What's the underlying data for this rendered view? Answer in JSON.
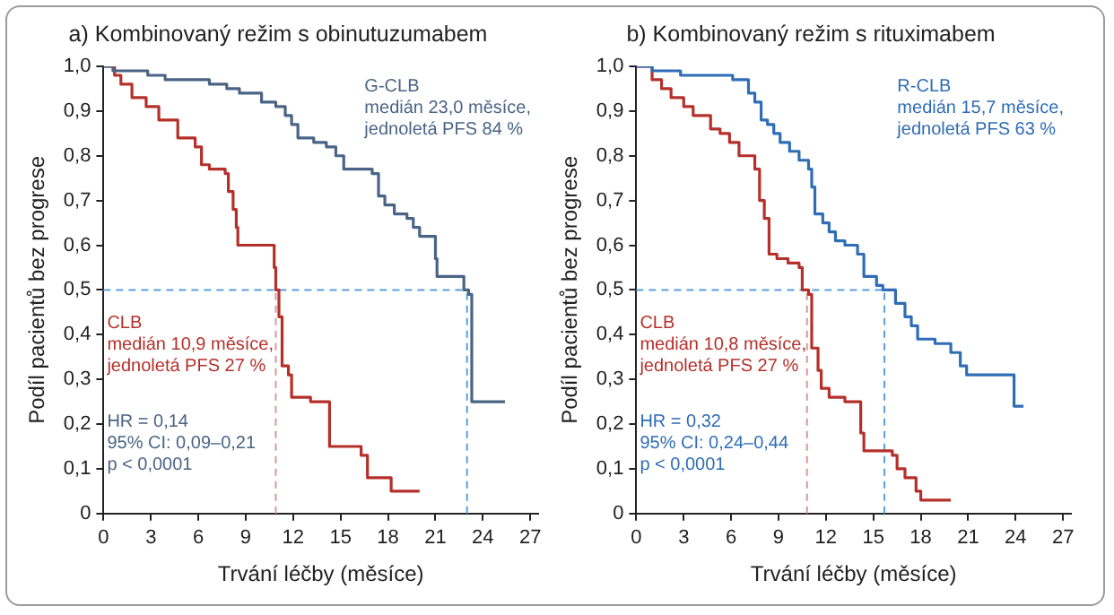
{
  "chart_data": [
    {
      "type": "step",
      "title": "a) Kombinovaný režim s obinutuzumabem",
      "xlabel": "Trvání léčby (měsíce)",
      "ylabel": "Podíl pacientů bez progrese",
      "xlim": [
        0,
        27.5
      ],
      "xticks": [
        0,
        3,
        6,
        9,
        12,
        15,
        18,
        21,
        24,
        27
      ],
      "ylim": [
        0,
        1
      ],
      "yticks": [
        0,
        {
          "value": 0.1,
          "label": "0,1"
        },
        {
          "value": 0.2,
          "label": "0,2"
        },
        {
          "value": 0.3,
          "label": "0,3"
        },
        {
          "value": 0.4,
          "label": "0,4"
        },
        {
          "value": 0.5,
          "label": "0,5"
        },
        {
          "value": 0.6,
          "label": "0,6"
        },
        {
          "value": 0.7,
          "label": "0,7"
        },
        {
          "value": 0.8,
          "label": "0,8"
        },
        {
          "value": 0.9,
          "label": "0,9"
        },
        {
          "value": 1,
          "label": "1,0"
        }
      ],
      "grid": false,
      "legend": false,
      "series": [
        {
          "name": "G-CLB",
          "color": "#4a6485",
          "x": [
            0,
            0.6,
            2.8,
            3.9,
            6.7,
            7.8,
            8.6,
            10.0,
            10.9,
            11.5,
            11.9,
            12.3,
            13.3,
            14.1,
            14.7,
            15.2,
            17.0,
            17.4,
            17.8,
            18.4,
            19.2,
            19.6,
            20.0,
            21.0,
            21.1,
            22.8,
            23.1,
            23.3,
            25.4
          ],
          "values": [
            1,
            0.99,
            0.98,
            0.97,
            0.96,
            0.95,
            0.94,
            0.92,
            0.91,
            0.89,
            0.87,
            0.84,
            0.83,
            0.82,
            0.8,
            0.77,
            0.76,
            0.71,
            0.69,
            0.67,
            0.66,
            0.64,
            0.62,
            0.57,
            0.53,
            0.5,
            0.49,
            0.25,
            0.25
          ]
        },
        {
          "name": "CLB",
          "color": "#b5302a",
          "x": [
            0,
            0.7,
            1.1,
            1.8,
            2.7,
            3.5,
            4.7,
            5.8,
            6.2,
            6.7,
            7.7,
            7.9,
            8.2,
            8.4,
            8.5,
            10.8,
            10.9,
            11.1,
            11.3,
            11.7,
            11.9,
            13.1,
            14.3,
            16.3,
            16.7,
            18.2,
            20.0
          ],
          "values": [
            1,
            0.98,
            0.96,
            0.93,
            0.91,
            0.88,
            0.84,
            0.82,
            0.78,
            0.77,
            0.76,
            0.72,
            0.68,
            0.64,
            0.6,
            0.55,
            0.5,
            0.44,
            0.33,
            0.31,
            0.26,
            0.25,
            0.15,
            0.13,
            0.08,
            0.05,
            0.05
          ]
        }
      ],
      "ref_lines": [
        {
          "axis": "y",
          "value": 0.5,
          "color": "#5aa0dc",
          "line_style": "dashed"
        },
        {
          "axis": "x",
          "value": 10.9,
          "color": "#d49a9a",
          "line_style": "dashed"
        },
        {
          "axis": "x",
          "value": 23.0,
          "color": "#5aa0dc",
          "line_style": "dashed"
        }
      ],
      "annotations": [
        "medián 23,0 měsíce,",
        "jednoletá PFS 84 %",
        "medián 10,9 měsíce,",
        "jednoletá PFS 27 %",
        "HR = 0,14",
        "95% CI: 0,09–0,21",
        "p < 0,0001"
      ]
    },
    {
      "type": "step",
      "title": "b) Kombinovaný režim s rituximabem",
      "xlabel": "Trvání léčby (měsíce)",
      "ylabel": "Podíl pacientů bez progrese",
      "xlim": [
        0,
        27.5
      ],
      "xticks": [
        0,
        3,
        6,
        9,
        12,
        15,
        18,
        21,
        24,
        27
      ],
      "ylim": [
        0,
        1
      ],
      "yticks": [
        0,
        {
          "value": 0.1,
          "label": "0,1"
        },
        {
          "value": 0.2,
          "label": "0,2"
        },
        {
          "value": 0.3,
          "label": "0,3"
        },
        {
          "value": 0.4,
          "label": "0,4"
        },
        {
          "value": 0.5,
          "label": "0,5"
        },
        {
          "value": 0.6,
          "label": "0,6"
        },
        {
          "value": 0.7,
          "label": "0,7"
        },
        {
          "value": 0.8,
          "label": "0,8"
        },
        {
          "value": 0.9,
          "label": "0,9"
        },
        {
          "value": 1,
          "label": "1,0"
        }
      ],
      "grid": false,
      "legend": false,
      "series": [
        {
          "name": "R-CLB",
          "color": "#2f6db5",
          "x": [
            0,
            1.0,
            2.8,
            6.1,
            7.1,
            7.5,
            7.9,
            8.3,
            8.7,
            9.1,
            9.7,
            10.3,
            10.9,
            11.1,
            11.3,
            11.8,
            12.2,
            12.6,
            13.2,
            14.0,
            14.4,
            15.2,
            15.6,
            16.4,
            17.0,
            17.4,
            17.8,
            18.9,
            19.9,
            20.5,
            20.9,
            23.9,
            24.5
          ],
          "values": [
            1,
            0.99,
            0.98,
            0.97,
            0.94,
            0.92,
            0.88,
            0.87,
            0.85,
            0.83,
            0.81,
            0.79,
            0.77,
            0.73,
            0.67,
            0.65,
            0.63,
            0.61,
            0.6,
            0.58,
            0.53,
            0.51,
            0.5,
            0.47,
            0.44,
            0.42,
            0.39,
            0.38,
            0.36,
            0.33,
            0.31,
            0.24,
            0.24
          ]
        },
        {
          "name": "CLB",
          "color": "#b5302a",
          "x": [
            0,
            1.0,
            1.6,
            2.2,
            3.0,
            3.6,
            4.7,
            5.3,
            5.9,
            6.5,
            7.5,
            7.8,
            8.1,
            8.4,
            8.9,
            9.6,
            10.3,
            10.5,
            10.9,
            11.1,
            11.5,
            11.7,
            12.2,
            13.2,
            14.2,
            14.4,
            16.2,
            16.5,
            17.0,
            17.7,
            18.0,
            19.9
          ],
          "values": [
            1,
            0.97,
            0.95,
            0.93,
            0.91,
            0.89,
            0.86,
            0.85,
            0.83,
            0.8,
            0.77,
            0.7,
            0.66,
            0.58,
            0.57,
            0.56,
            0.55,
            0.5,
            0.49,
            0.37,
            0.32,
            0.28,
            0.26,
            0.25,
            0.18,
            0.14,
            0.13,
            0.1,
            0.08,
            0.05,
            0.03,
            0.03
          ]
        }
      ],
      "ref_lines": [
        {
          "axis": "y",
          "value": 0.5,
          "color": "#5aa0dc",
          "line_style": "dashed"
        },
        {
          "axis": "x",
          "value": 10.8,
          "color": "#d49a9a",
          "line_style": "dashed"
        },
        {
          "axis": "x",
          "value": 15.7,
          "color": "#5aa0dc",
          "line_style": "dashed"
        }
      ],
      "annotations": [
        "medián 15,7 měsíce,",
        "jednoletá PFS 63 %",
        "medián 10,8 měsíce,",
        "jednoletá PFS 27 %",
        "HR = 0,32",
        "95% CI: 0,24–0,44",
        "p < 0,0001"
      ]
    }
  ]
}
